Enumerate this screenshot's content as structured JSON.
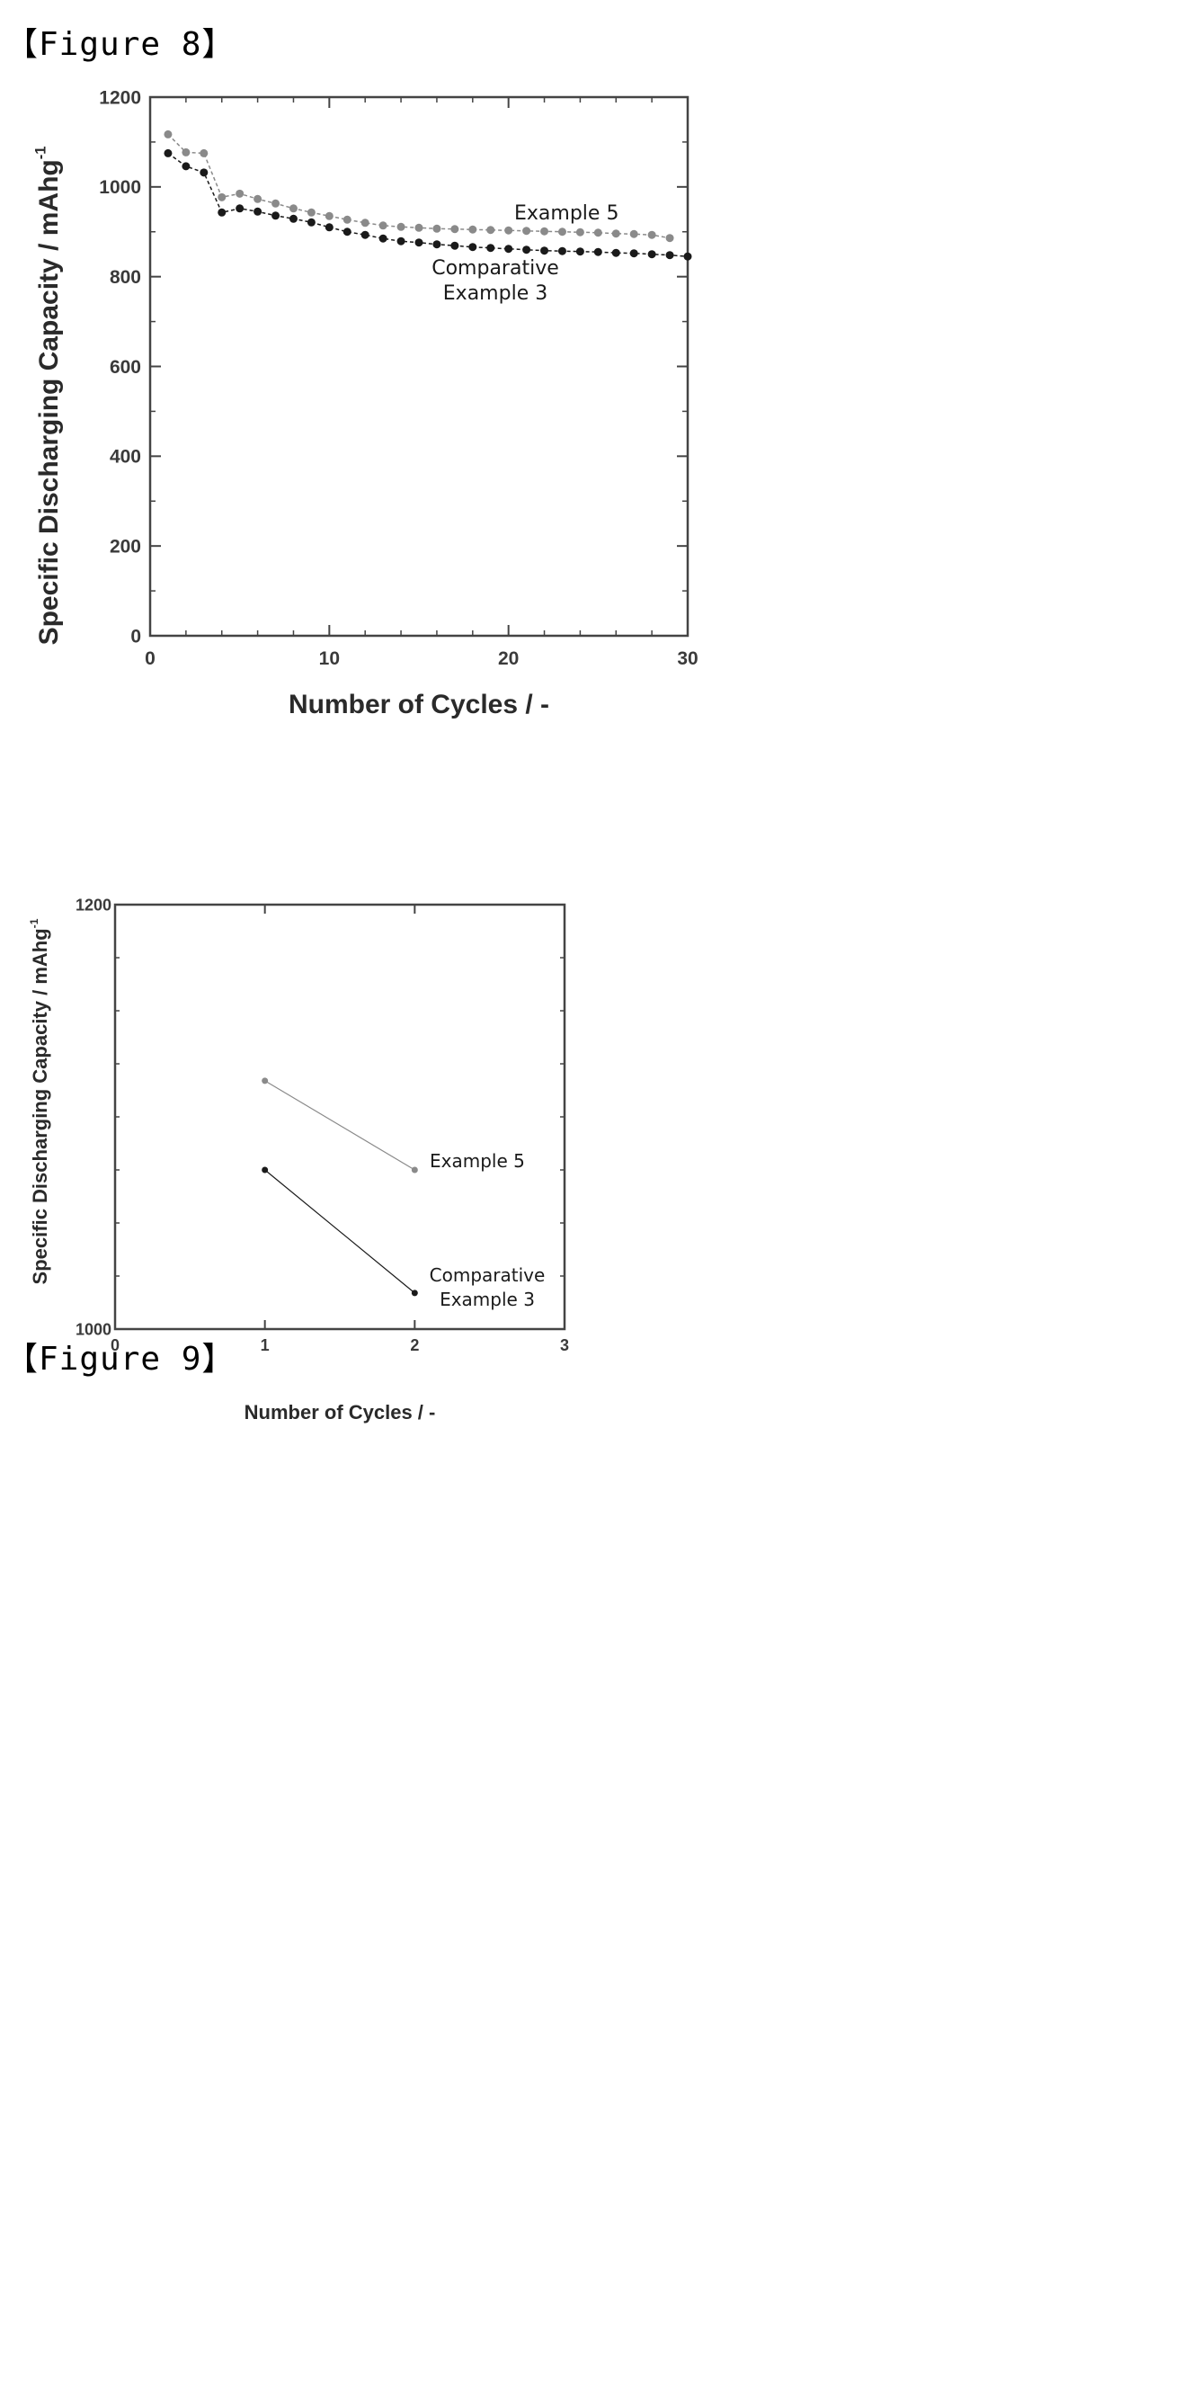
{
  "figures": [
    {
      "label": "【Figure 8】"
    },
    {
      "label": "【Figure 9】"
    }
  ],
  "chart_data": [
    {
      "type": "line",
      "xlabel": "Number of Cycles / -",
      "ylabel": "Specific Discharging Capacity / mAhg",
      "ylabel_superscript": "-1",
      "xlim": [
        0,
        30
      ],
      "ylim": [
        0,
        1200
      ],
      "xticks": [
        "0",
        "10",
        "20",
        "30"
      ],
      "yticks": [
        "0",
        "200",
        "400",
        "600",
        "800",
        "1000",
        "1200"
      ],
      "grid": false,
      "annotations": [
        "Example 5",
        "Comparative",
        "Example 3"
      ],
      "series": [
        {
          "name": "Example 5",
          "color": "#8a8a8a",
          "x": [
            1,
            2,
            3,
            4,
            5,
            6,
            7,
            8,
            9,
            10,
            11,
            12,
            13,
            14,
            15,
            16,
            17,
            18,
            19,
            20,
            21,
            22,
            23,
            24,
            25,
            26,
            27,
            28,
            29
          ],
          "values": [
            1117,
            1077,
            1075,
            977,
            985,
            973,
            963,
            952,
            943,
            935,
            927,
            920,
            914,
            911,
            909,
            907,
            906,
            905,
            904,
            903,
            902,
            901,
            900,
            899,
            898,
            896,
            895,
            893,
            886
          ]
        },
        {
          "name": "Comparative Example 3",
          "color": "#1a1a1a",
          "x": [
            1,
            2,
            3,
            4,
            5,
            6,
            7,
            8,
            9,
            10,
            11,
            12,
            13,
            14,
            15,
            16,
            17,
            18,
            19,
            20,
            21,
            22,
            23,
            24,
            25,
            26,
            27,
            28,
            29,
            30
          ],
          "values": [
            1075,
            1046,
            1032,
            943,
            952,
            945,
            936,
            929,
            921,
            910,
            900,
            893,
            885,
            879,
            876,
            872,
            869,
            866,
            864,
            862,
            860,
            858,
            857,
            856,
            855,
            853,
            852,
            850,
            848,
            845
          ]
        }
      ]
    },
    {
      "type": "line",
      "xlabel": "Number of Cycles / -",
      "ylabel": "Specific Discharging Capacity / mAhg",
      "ylabel_superscript": "-1",
      "xlim": [
        0,
        3
      ],
      "ylim": [
        1000,
        1200
      ],
      "xticks": [
        "0",
        "1",
        "2",
        "3"
      ],
      "yticks": [
        "1000",
        "1200"
      ],
      "grid": false,
      "annotations": [
        "Example 5",
        "Comparative",
        "Example 3"
      ],
      "series": [
        {
          "name": "Example 5",
          "color": "#8a8a8a",
          "x": [
            1,
            2
          ],
          "values": [
            1117,
            1075
          ]
        },
        {
          "name": "Comparative Example 3",
          "color": "#1a1a1a",
          "x": [
            1,
            2
          ],
          "values": [
            1075,
            1017
          ]
        }
      ]
    }
  ]
}
